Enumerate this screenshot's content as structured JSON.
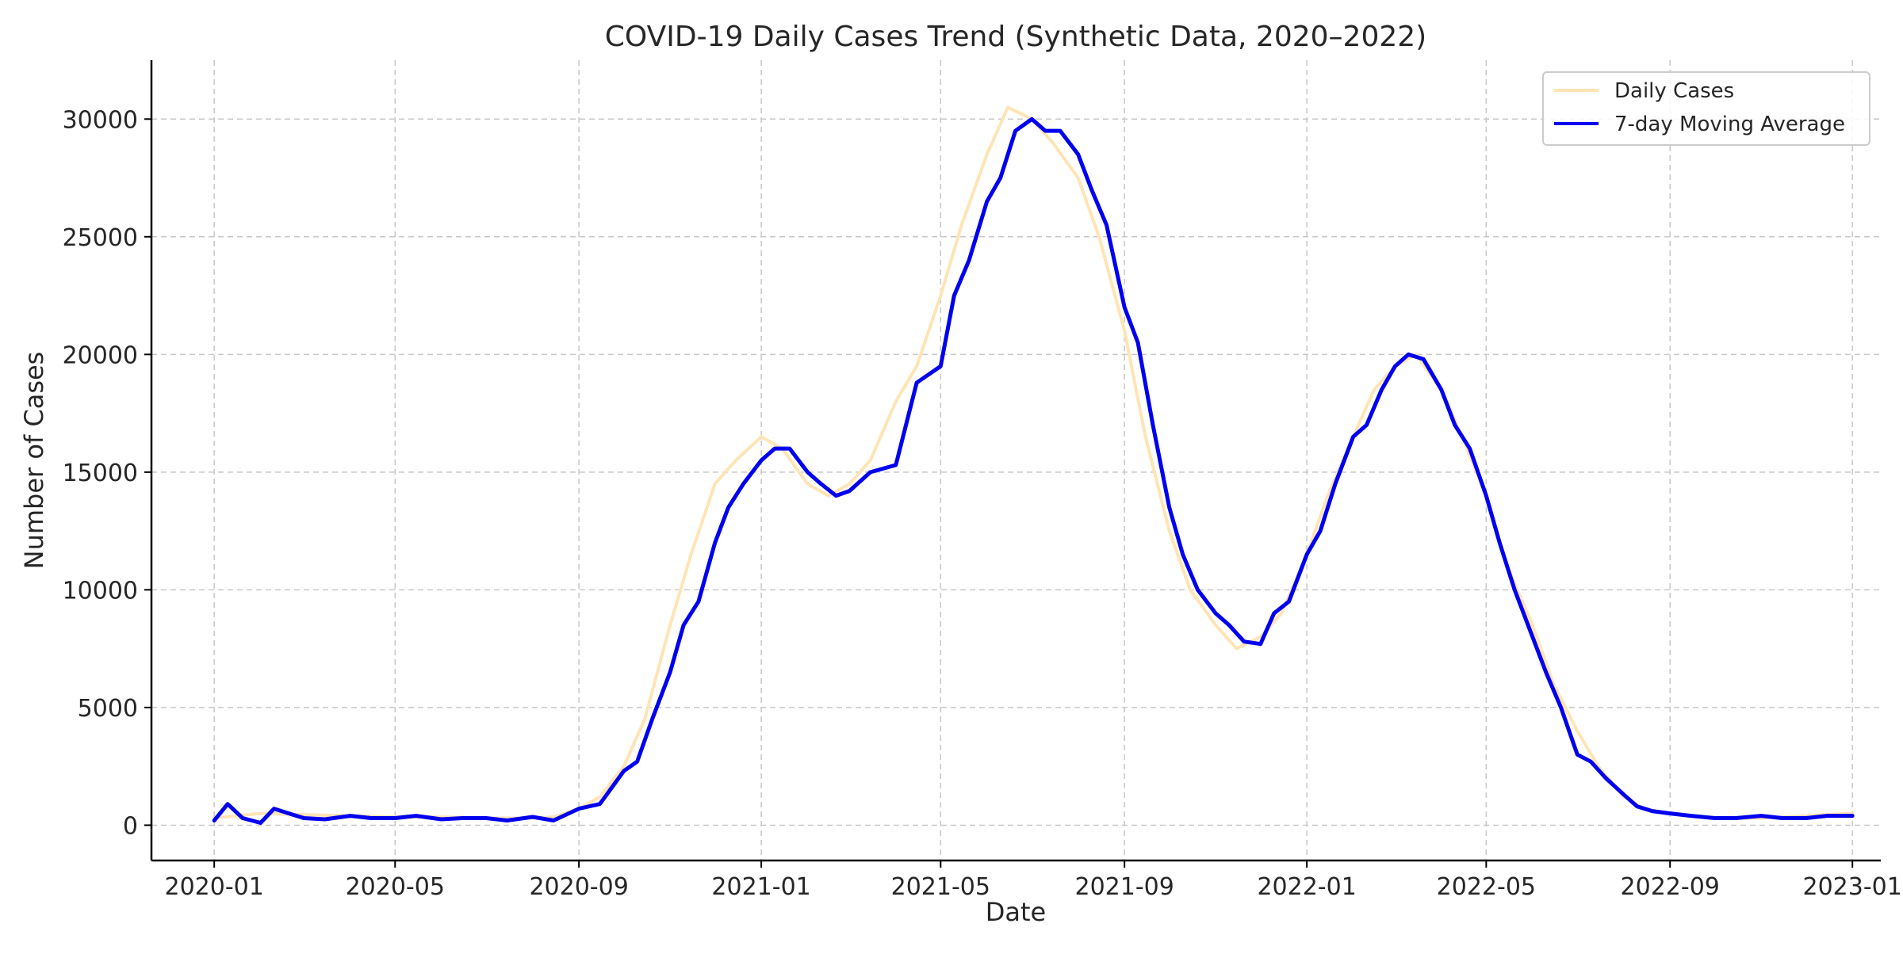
{
  "chart_data": {
    "type": "line",
    "title": "COVID-19 Daily Cases Trend (Synthetic Data, 2020–2022)",
    "xlabel": "Date",
    "ylabel": "Number of Cases",
    "x_ticks": [
      "2020-01",
      "2020-05",
      "2020-09",
      "2021-01",
      "2021-05",
      "2021-09",
      "2022-01",
      "2022-05",
      "2022-09",
      "2023-01"
    ],
    "y_ticks": [
      "0",
      "5000",
      "10000",
      "15000",
      "20000",
      "25000",
      "30000"
    ],
    "ylim": [
      -1500,
      32500
    ],
    "xlim": [
      "2019-11-20",
      "2023-01-20"
    ],
    "grid": true,
    "legend_position": "top-right",
    "colors": {
      "daily": "#ffe4b5",
      "average": "#0000ee"
    },
    "series": [
      {
        "name": "Daily Cases",
        "x": [
          "2020-01-01",
          "2020-02-01",
          "2020-03-01",
          "2020-04-01",
          "2020-05-01",
          "2020-06-01",
          "2020-07-01",
          "2020-08-01",
          "2020-08-15",
          "2020-09-01",
          "2020-09-15",
          "2020-10-01",
          "2020-10-15",
          "2020-11-01",
          "2020-11-15",
          "2020-12-01",
          "2020-12-15",
          "2021-01-01",
          "2021-01-15",
          "2021-02-01",
          "2021-02-15",
          "2021-03-01",
          "2021-03-15",
          "2021-04-01",
          "2021-04-15",
          "2021-05-01",
          "2021-05-15",
          "2021-06-01",
          "2021-06-15",
          "2021-07-01",
          "2021-07-15",
          "2021-08-01",
          "2021-08-15",
          "2021-09-01",
          "2021-09-15",
          "2021-10-01",
          "2021-10-15",
          "2021-11-01",
          "2021-11-15",
          "2021-12-01",
          "2021-12-15",
          "2022-01-01",
          "2022-01-15",
          "2022-02-01",
          "2022-02-15",
          "2022-03-01",
          "2022-03-15",
          "2022-04-01",
          "2022-04-15",
          "2022-05-01",
          "2022-05-15",
          "2022-06-01",
          "2022-06-15",
          "2022-07-01",
          "2022-07-15",
          "2022-08-01",
          "2022-08-15",
          "2022-09-01",
          "2022-10-01",
          "2022-11-01",
          "2022-12-01",
          "2023-01-01"
        ],
        "values": [
          300,
          500,
          450,
          400,
          350,
          350,
          300,
          300,
          350,
          700,
          1200,
          2500,
          4500,
          8500,
          11500,
          14500,
          15500,
          16500,
          16000,
          14500,
          14000,
          14500,
          15500,
          18000,
          19500,
          22500,
          25500,
          28500,
          30500,
          30000,
          29000,
          27500,
          25000,
          21000,
          16500,
          12500,
          10000,
          8500,
          7500,
          8000,
          9000,
          11500,
          14000,
          16500,
          18500,
          19500,
          20000,
          18500,
          16500,
          14000,
          11000,
          8500,
          6000,
          4000,
          2500,
          1200,
          700,
          500,
          300,
          300,
          400,
          500
        ]
      },
      {
        "name": "7-day Moving Average",
        "x": [
          "2020-01-01",
          "2020-01-10",
          "2020-01-20",
          "2020-02-01",
          "2020-02-10",
          "2020-02-20",
          "2020-03-01",
          "2020-03-15",
          "2020-04-01",
          "2020-04-15",
          "2020-05-01",
          "2020-05-15",
          "2020-06-01",
          "2020-06-15",
          "2020-07-01",
          "2020-07-15",
          "2020-08-01",
          "2020-08-15",
          "2020-09-01",
          "2020-09-15",
          "2020-10-01",
          "2020-10-10",
          "2020-10-20",
          "2020-11-01",
          "2020-11-10",
          "2020-11-20",
          "2020-12-01",
          "2020-12-10",
          "2020-12-20",
          "2021-01-01",
          "2021-01-10",
          "2021-01-20",
          "2021-02-01",
          "2021-02-10",
          "2021-02-20",
          "2021-03-01",
          "2021-03-15",
          "2021-04-01",
          "2021-04-15",
          "2021-05-01",
          "2021-05-10",
          "2021-05-20",
          "2021-06-01",
          "2021-06-10",
          "2021-06-20",
          "2021-07-01",
          "2021-07-10",
          "2021-07-20",
          "2021-08-01",
          "2021-08-10",
          "2021-08-20",
          "2021-09-01",
          "2021-09-10",
          "2021-09-20",
          "2021-10-01",
          "2021-10-10",
          "2021-10-20",
          "2021-11-01",
          "2021-11-10",
          "2021-11-20",
          "2021-12-01",
          "2021-12-10",
          "2021-12-20",
          "2022-01-01",
          "2022-01-10",
          "2022-01-20",
          "2022-02-01",
          "2022-02-10",
          "2022-02-20",
          "2022-03-01",
          "2022-03-10",
          "2022-03-20",
          "2022-04-01",
          "2022-04-10",
          "2022-04-20",
          "2022-05-01",
          "2022-05-10",
          "2022-05-20",
          "2022-06-01",
          "2022-06-10",
          "2022-06-20",
          "2022-07-01",
          "2022-07-10",
          "2022-07-20",
          "2022-08-01",
          "2022-08-10",
          "2022-08-20",
          "2022-09-01",
          "2022-09-15",
          "2022-10-01",
          "2022-10-15",
          "2022-11-01",
          "2022-11-15",
          "2022-12-01",
          "2022-12-15",
          "2023-01-01"
        ],
        "values": [
          200,
          900,
          300,
          100,
          700,
          500,
          300,
          250,
          400,
          300,
          300,
          400,
          250,
          300,
          300,
          200,
          350,
          200,
          700,
          900,
          2300,
          2700,
          4500,
          6500,
          8500,
          9500,
          12000,
          13500,
          14500,
          15500,
          16000,
          16000,
          15000,
          14500,
          14000,
          14200,
          15000,
          15300,
          18800,
          19500,
          22500,
          24000,
          26500,
          27500,
          29500,
          30000,
          29500,
          29500,
          28500,
          27000,
          25500,
          22000,
          20500,
          17000,
          13500,
          11500,
          10000,
          9000,
          8500,
          7800,
          7700,
          9000,
          9500,
          11500,
          12500,
          14500,
          16500,
          17000,
          18500,
          19500,
          20000,
          19800,
          18500,
          17000,
          16000,
          14000,
          12000,
          10000,
          8000,
          6500,
          5000,
          3000,
          2700,
          2000,
          1300,
          800,
          600,
          500,
          400,
          300,
          300,
          400,
          300,
          300,
          400,
          400
        ]
      }
    ]
  }
}
